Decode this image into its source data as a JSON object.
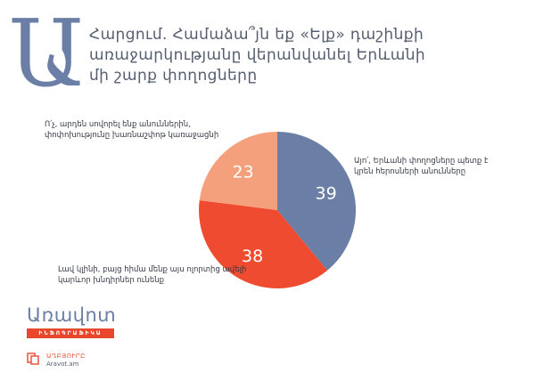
{
  "header": {
    "big_letter": "Ա",
    "question": "Հարցում. Համաձա՞յն եք «Ելք» դաշինքի առաջարկությանը վերանվանել Երևանի մի շարք փողոցները"
  },
  "chart_data": {
    "type": "pie",
    "title": "",
    "slices": [
      {
        "label": "Այո՛, Երևանի փողոցները պետք է կրեն հերոսների անունները",
        "value": 39,
        "color": "#6b7fa6"
      },
      {
        "label": "Լավ կլինի, բայց հիմա մենք այս ոլորտից ավելի կարևոր խնդիրներ ունենք",
        "value": 38,
        "color": "#ef4b30"
      },
      {
        "label": "Ո՛չ, արդեն սովորել ենք անուններին, փոփոխությունը խառնաշփոթ կառաջացնի",
        "value": 23,
        "color": "#f5a07d"
      }
    ],
    "value_label_color": "#ffffff"
  },
  "branding": {
    "logo_word": "Առավոտ",
    "logo_band": "ԻՆՖՈԳՐԱՖԻԿԱ",
    "source_label": "ԱՂԲՅՈՒՐԸ",
    "source_site": "Aravot.am",
    "accent": "#e8472d",
    "brand_blue": "#6b7fa6"
  }
}
